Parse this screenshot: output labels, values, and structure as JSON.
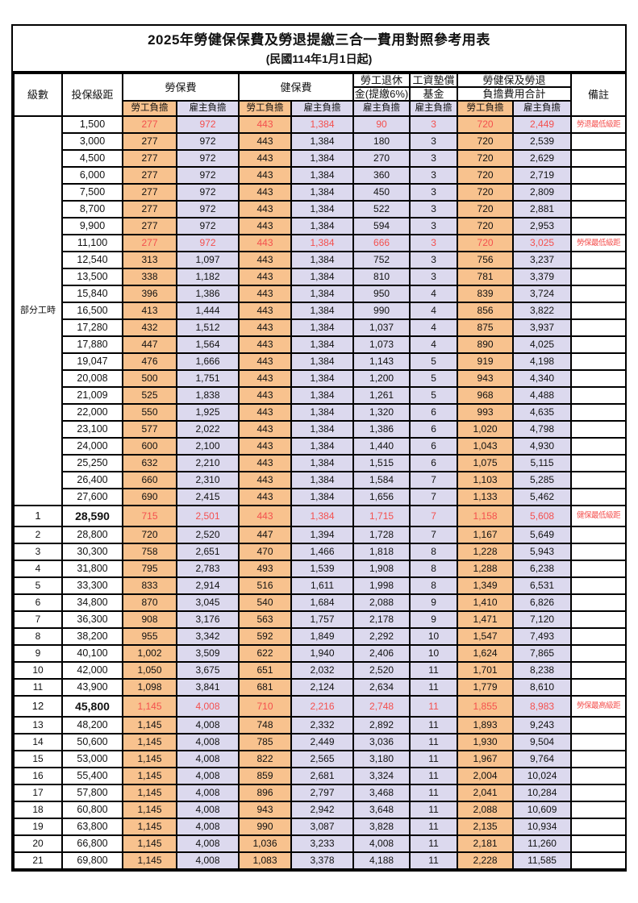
{
  "colors": {
    "employee_share_bg": "#F8C28E",
    "employer_share_bg": "#DCD9EE",
    "highlight_red": "#F4504E",
    "border": "#000000",
    "background": "#FFFFFF"
  },
  "table": {
    "title": "2025年勞健保保費及勞退提繳三合一費用對照參考用表",
    "subtitle": "(民國114年1月1日起)",
    "headers": {
      "grade": "級數",
      "bracket": "投保級距",
      "labor_insurance": "勞保費",
      "health_insurance": "健保費",
      "pension_line1": "勞工退休",
      "pension_line2": "金(提繳6%)",
      "wage_fund_line1": "工資墊償",
      "wage_fund_line2": "基金",
      "total_line1": "勞健保及勞退",
      "total_line2": "負擔費用合計",
      "employee_share": "勞工負擔",
      "employer_share": "雇主負擔",
      "remark": "備註"
    },
    "part_time_label": "部分工時",
    "part_time_row_count": 23,
    "rows": [
      {
        "bracket": "1,500",
        "labor_emp": "277",
        "labor_er": "972",
        "health_emp": "443",
        "health_er": "1,384",
        "pension_er": "90",
        "fund_er": "3",
        "total_emp": "720",
        "total_er": "2,449",
        "remark": "勞退最低級距",
        "red": true
      },
      {
        "bracket": "3,000",
        "labor_emp": "277",
        "labor_er": "972",
        "health_emp": "443",
        "health_er": "1,384",
        "pension_er": "180",
        "fund_er": "3",
        "total_emp": "720",
        "total_er": "2,539"
      },
      {
        "bracket": "4,500",
        "labor_emp": "277",
        "labor_er": "972",
        "health_emp": "443",
        "health_er": "1,384",
        "pension_er": "270",
        "fund_er": "3",
        "total_emp": "720",
        "total_er": "2,629"
      },
      {
        "bracket": "6,000",
        "labor_emp": "277",
        "labor_er": "972",
        "health_emp": "443",
        "health_er": "1,384",
        "pension_er": "360",
        "fund_er": "3",
        "total_emp": "720",
        "total_er": "2,719"
      },
      {
        "bracket": "7,500",
        "labor_emp": "277",
        "labor_er": "972",
        "health_emp": "443",
        "health_er": "1,384",
        "pension_er": "450",
        "fund_er": "3",
        "total_emp": "720",
        "total_er": "2,809"
      },
      {
        "bracket": "8,700",
        "labor_emp": "277",
        "labor_er": "972",
        "health_emp": "443",
        "health_er": "1,384",
        "pension_er": "522",
        "fund_er": "3",
        "total_emp": "720",
        "total_er": "2,881"
      },
      {
        "bracket": "9,900",
        "labor_emp": "277",
        "labor_er": "972",
        "health_emp": "443",
        "health_er": "1,384",
        "pension_er": "594",
        "fund_er": "3",
        "total_emp": "720",
        "total_er": "2,953"
      },
      {
        "bracket": "11,100",
        "labor_emp": "277",
        "labor_er": "972",
        "health_emp": "443",
        "health_er": "1,384",
        "pension_er": "666",
        "fund_er": "3",
        "total_emp": "720",
        "total_er": "3,025",
        "remark": "勞保最低級距",
        "red": true
      },
      {
        "bracket": "12,540",
        "labor_emp": "313",
        "labor_er": "1,097",
        "health_emp": "443",
        "health_er": "1,384",
        "pension_er": "752",
        "fund_er": "3",
        "total_emp": "756",
        "total_er": "3,237"
      },
      {
        "bracket": "13,500",
        "labor_emp": "338",
        "labor_er": "1,182",
        "health_emp": "443",
        "health_er": "1,384",
        "pension_er": "810",
        "fund_er": "3",
        "total_emp": "781",
        "total_er": "3,379"
      },
      {
        "bracket": "15,840",
        "labor_emp": "396",
        "labor_er": "1,386",
        "health_emp": "443",
        "health_er": "1,384",
        "pension_er": "950",
        "fund_er": "4",
        "total_emp": "839",
        "total_er": "3,724"
      },
      {
        "bracket": "16,500",
        "labor_emp": "413",
        "labor_er": "1,444",
        "health_emp": "443",
        "health_er": "1,384",
        "pension_er": "990",
        "fund_er": "4",
        "total_emp": "856",
        "total_er": "3,822"
      },
      {
        "bracket": "17,280",
        "labor_emp": "432",
        "labor_er": "1,512",
        "health_emp": "443",
        "health_er": "1,384",
        "pension_er": "1,037",
        "fund_er": "4",
        "total_emp": "875",
        "total_er": "3,937"
      },
      {
        "bracket": "17,880",
        "labor_emp": "447",
        "labor_er": "1,564",
        "health_emp": "443",
        "health_er": "1,384",
        "pension_er": "1,073",
        "fund_er": "4",
        "total_emp": "890",
        "total_er": "4,025"
      },
      {
        "bracket": "19,047",
        "labor_emp": "476",
        "labor_er": "1,666",
        "health_emp": "443",
        "health_er": "1,384",
        "pension_er": "1,143",
        "fund_er": "5",
        "total_emp": "919",
        "total_er": "4,198"
      },
      {
        "bracket": "20,008",
        "labor_emp": "500",
        "labor_er": "1,751",
        "health_emp": "443",
        "health_er": "1,384",
        "pension_er": "1,200",
        "fund_er": "5",
        "total_emp": "943",
        "total_er": "4,340"
      },
      {
        "bracket": "21,009",
        "labor_emp": "525",
        "labor_er": "1,838",
        "health_emp": "443",
        "health_er": "1,384",
        "pension_er": "1,261",
        "fund_er": "5",
        "total_emp": "968",
        "total_er": "4,488"
      },
      {
        "bracket": "22,000",
        "labor_emp": "550",
        "labor_er": "1,925",
        "health_emp": "443",
        "health_er": "1,384",
        "pension_er": "1,320",
        "fund_er": "6",
        "total_emp": "993",
        "total_er": "4,635"
      },
      {
        "bracket": "23,100",
        "labor_emp": "577",
        "labor_er": "2,022",
        "health_emp": "443",
        "health_er": "1,384",
        "pension_er": "1,386",
        "fund_er": "6",
        "total_emp": "1,020",
        "total_er": "4,798"
      },
      {
        "bracket": "24,000",
        "labor_emp": "600",
        "labor_er": "2,100",
        "health_emp": "443",
        "health_er": "1,384",
        "pension_er": "1,440",
        "fund_er": "6",
        "total_emp": "1,043",
        "total_er": "4,930"
      },
      {
        "bracket": "25,250",
        "labor_emp": "632",
        "labor_er": "2,210",
        "health_emp": "443",
        "health_er": "1,384",
        "pension_er": "1,515",
        "fund_er": "6",
        "total_emp": "1,075",
        "total_er": "5,115"
      },
      {
        "bracket": "26,400",
        "labor_emp": "660",
        "labor_er": "2,310",
        "health_emp": "443",
        "health_er": "1,384",
        "pension_er": "1,584",
        "fund_er": "7",
        "total_emp": "1,103",
        "total_er": "5,285"
      },
      {
        "bracket": "27,600",
        "labor_emp": "690",
        "labor_er": "2,415",
        "health_emp": "443",
        "health_er": "1,384",
        "pension_er": "1,656",
        "fund_er": "7",
        "total_emp": "1,133",
        "total_er": "5,462"
      },
      {
        "grade": "1",
        "bracket": "28,590",
        "labor_emp": "715",
        "labor_er": "2,501",
        "health_emp": "443",
        "health_er": "1,384",
        "pension_er": "1,715",
        "fund_er": "7",
        "total_emp": "1,158",
        "total_er": "5,608",
        "remark": "健保最低級距",
        "red": true,
        "special": true
      },
      {
        "grade": "2",
        "bracket": "28,800",
        "labor_emp": "720",
        "labor_er": "2,520",
        "health_emp": "447",
        "health_er": "1,394",
        "pension_er": "1,728",
        "fund_er": "7",
        "total_emp": "1,167",
        "total_er": "5,649"
      },
      {
        "grade": "3",
        "bracket": "30,300",
        "labor_emp": "758",
        "labor_er": "2,651",
        "health_emp": "470",
        "health_er": "1,466",
        "pension_er": "1,818",
        "fund_er": "8",
        "total_emp": "1,228",
        "total_er": "5,943"
      },
      {
        "grade": "4",
        "bracket": "31,800",
        "labor_emp": "795",
        "labor_er": "2,783",
        "health_emp": "493",
        "health_er": "1,539",
        "pension_er": "1,908",
        "fund_er": "8",
        "total_emp": "1,288",
        "total_er": "6,238"
      },
      {
        "grade": "5",
        "bracket": "33,300",
        "labor_emp": "833",
        "labor_er": "2,914",
        "health_emp": "516",
        "health_er": "1,611",
        "pension_er": "1,998",
        "fund_er": "8",
        "total_emp": "1,349",
        "total_er": "6,531"
      },
      {
        "grade": "6",
        "bracket": "34,800",
        "labor_emp": "870",
        "labor_er": "3,045",
        "health_emp": "540",
        "health_er": "1,684",
        "pension_er": "2,088",
        "fund_er": "9",
        "total_emp": "1,410",
        "total_er": "6,826"
      },
      {
        "grade": "7",
        "bracket": "36,300",
        "labor_emp": "908",
        "labor_er": "3,176",
        "health_emp": "563",
        "health_er": "1,757",
        "pension_er": "2,178",
        "fund_er": "9",
        "total_emp": "1,471",
        "total_er": "7,120"
      },
      {
        "grade": "8",
        "bracket": "38,200",
        "labor_emp": "955",
        "labor_er": "3,342",
        "health_emp": "592",
        "health_er": "1,849",
        "pension_er": "2,292",
        "fund_er": "10",
        "total_emp": "1,547",
        "total_er": "7,493"
      },
      {
        "grade": "9",
        "bracket": "40,100",
        "labor_emp": "1,002",
        "labor_er": "3,509",
        "health_emp": "622",
        "health_er": "1,940",
        "pension_er": "2,406",
        "fund_er": "10",
        "total_emp": "1,624",
        "total_er": "7,865"
      },
      {
        "grade": "10",
        "bracket": "42,000",
        "labor_emp": "1,050",
        "labor_er": "3,675",
        "health_emp": "651",
        "health_er": "2,032",
        "pension_er": "2,520",
        "fund_er": "11",
        "total_emp": "1,701",
        "total_er": "8,238"
      },
      {
        "grade": "11",
        "bracket": "43,900",
        "labor_emp": "1,098",
        "labor_er": "3,841",
        "health_emp": "681",
        "health_er": "2,124",
        "pension_er": "2,634",
        "fund_er": "11",
        "total_emp": "1,779",
        "total_er": "8,610"
      },
      {
        "grade": "12",
        "bracket": "45,800",
        "labor_emp": "1,145",
        "labor_er": "4,008",
        "health_emp": "710",
        "health_er": "2,216",
        "pension_er": "2,748",
        "fund_er": "11",
        "total_emp": "1,855",
        "total_er": "8,983",
        "remark": "勞保最高級距",
        "red": true,
        "special": true
      },
      {
        "grade": "13",
        "bracket": "48,200",
        "labor_emp": "1,145",
        "labor_er": "4,008",
        "health_emp": "748",
        "health_er": "2,332",
        "pension_er": "2,892",
        "fund_er": "11",
        "total_emp": "1,893",
        "total_er": "9,243"
      },
      {
        "grade": "14",
        "bracket": "50,600",
        "labor_emp": "1,145",
        "labor_er": "4,008",
        "health_emp": "785",
        "health_er": "2,449",
        "pension_er": "3,036",
        "fund_er": "11",
        "total_emp": "1,930",
        "total_er": "9,504"
      },
      {
        "grade": "15",
        "bracket": "53,000",
        "labor_emp": "1,145",
        "labor_er": "4,008",
        "health_emp": "822",
        "health_er": "2,565",
        "pension_er": "3,180",
        "fund_er": "11",
        "total_emp": "1,967",
        "total_er": "9,764"
      },
      {
        "grade": "16",
        "bracket": "55,400",
        "labor_emp": "1,145",
        "labor_er": "4,008",
        "health_emp": "859",
        "health_er": "2,681",
        "pension_er": "3,324",
        "fund_er": "11",
        "total_emp": "2,004",
        "total_er": "10,024"
      },
      {
        "grade": "17",
        "bracket": "57,800",
        "labor_emp": "1,145",
        "labor_er": "4,008",
        "health_emp": "896",
        "health_er": "2,797",
        "pension_er": "3,468",
        "fund_er": "11",
        "total_emp": "2,041",
        "total_er": "10,284"
      },
      {
        "grade": "18",
        "bracket": "60,800",
        "labor_emp": "1,145",
        "labor_er": "4,008",
        "health_emp": "943",
        "health_er": "2,942",
        "pension_er": "3,648",
        "fund_er": "11",
        "total_emp": "2,088",
        "total_er": "10,609"
      },
      {
        "grade": "19",
        "bracket": "63,800",
        "labor_emp": "1,145",
        "labor_er": "4,008",
        "health_emp": "990",
        "health_er": "3,087",
        "pension_er": "3,828",
        "fund_er": "11",
        "total_emp": "2,135",
        "total_er": "10,934"
      },
      {
        "grade": "20",
        "bracket": "66,800",
        "labor_emp": "1,145",
        "labor_er": "4,008",
        "health_emp": "1,036",
        "health_er": "3,233",
        "pension_er": "4,008",
        "fund_er": "11",
        "total_emp": "2,181",
        "total_er": "11,260"
      },
      {
        "grade": "21",
        "bracket": "69,800",
        "labor_emp": "1,145",
        "labor_er": "4,008",
        "health_emp": "1,083",
        "health_er": "3,378",
        "pension_er": "4,188",
        "fund_er": "11",
        "total_emp": "2,228",
        "total_er": "11,585"
      }
    ]
  }
}
